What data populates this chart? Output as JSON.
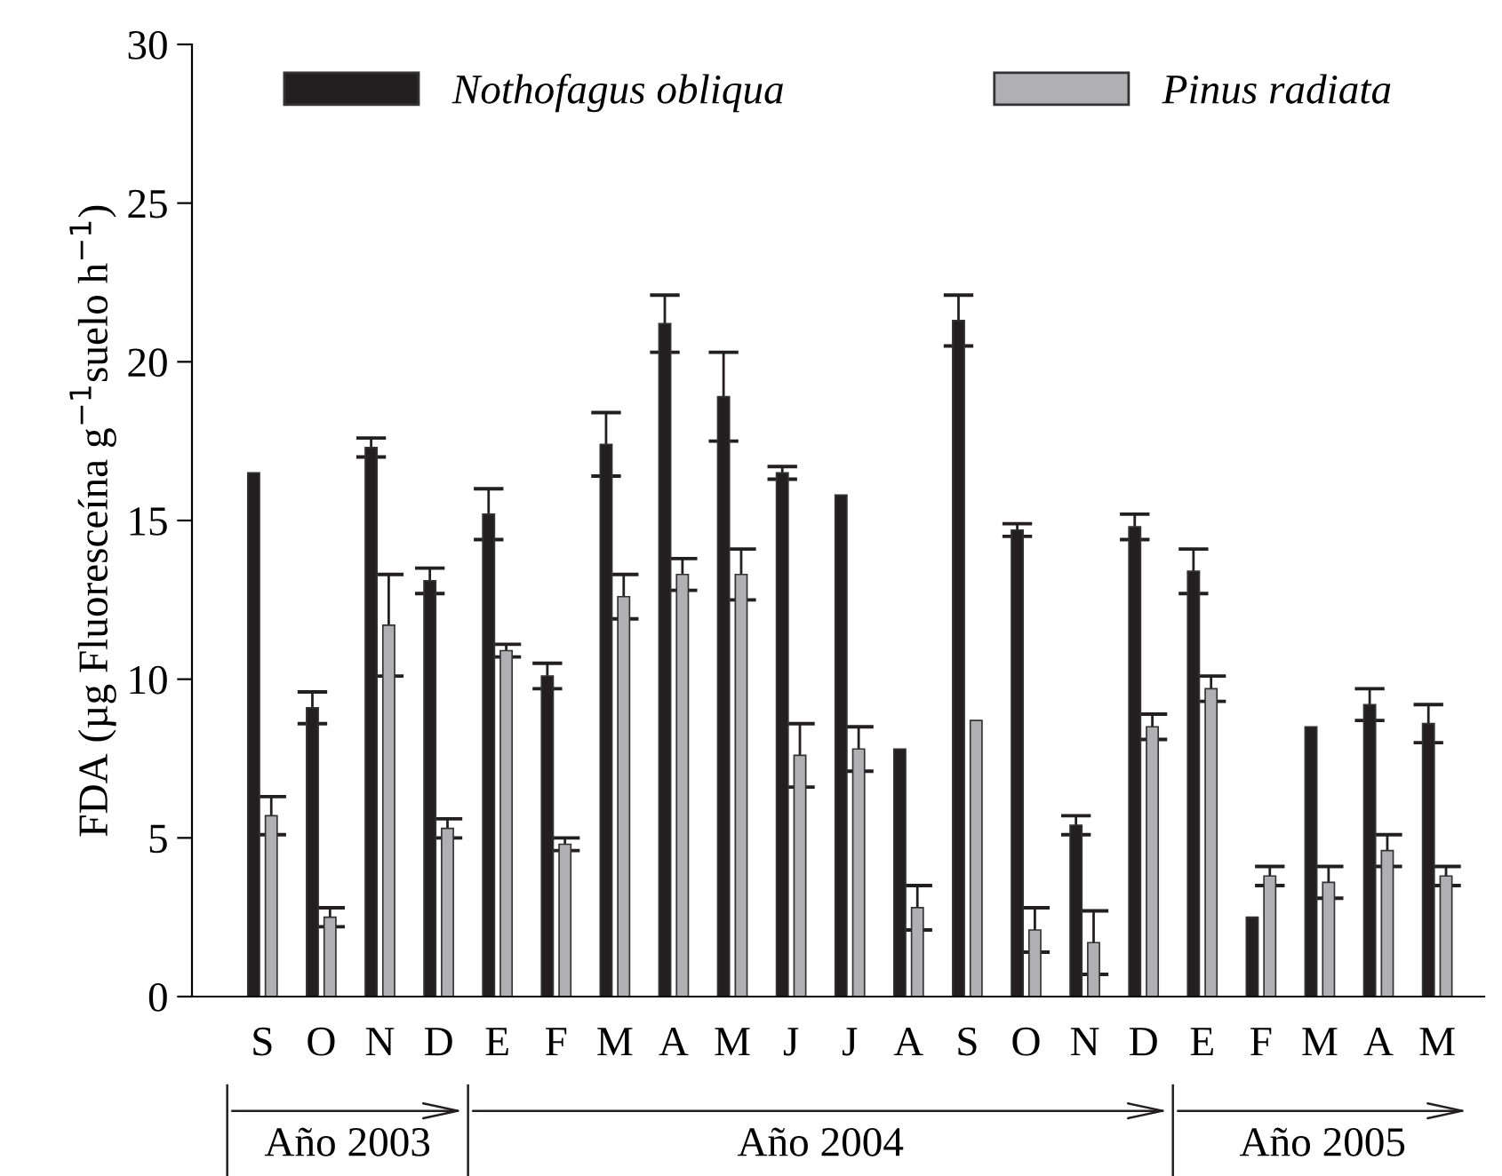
{
  "chart_data": {
    "type": "bar",
    "ylabel": "FDA (µg Fluoresceína g$^{−1}$suelo h$^{−1}$)",
    "categories": [
      "S",
      "O",
      "N",
      "D",
      "E",
      "F",
      "M",
      "A",
      "M",
      "J",
      "J",
      "A",
      "S",
      "O",
      "N",
      "D",
      "E",
      "F",
      "M",
      "A",
      "M"
    ],
    "series": [
      {
        "name": "Nothofagus obliqua",
        "color": "#231f20",
        "values": [
          16.5,
          9.1,
          17.3,
          13.1,
          15.2,
          10.1,
          17.4,
          21.2,
          18.9,
          16.5,
          15.8,
          7.8,
          21.3,
          14.7,
          5.4,
          14.8,
          13.4,
          2.5,
          8.5,
          9.2,
          8.6
        ],
        "errors": [
          null,
          0.5,
          0.3,
          0.4,
          0.8,
          0.4,
          1.0,
          0.9,
          1.4,
          0.2,
          null,
          null,
          0.8,
          0.2,
          0.3,
          0.4,
          0.7,
          null,
          null,
          0.5,
          0.6
        ]
      },
      {
        "name": "Pinus radiata",
        "color": "#b0b0b2",
        "values": [
          5.7,
          2.5,
          11.7,
          5.3,
          10.9,
          4.8,
          12.6,
          13.3,
          13.3,
          7.6,
          7.8,
          2.8,
          8.7,
          2.1,
          1.7,
          8.5,
          9.7,
          3.8,
          3.6,
          4.6,
          3.8
        ],
        "errors": [
          0.6,
          0.3,
          1.6,
          0.3,
          0.2,
          0.2,
          0.7,
          0.5,
          0.8,
          1.0,
          0.7,
          0.7,
          null,
          0.7,
          1.0,
          0.4,
          0.4,
          0.3,
          0.5,
          0.5,
          0.3
        ]
      }
    ],
    "ylim": [
      0,
      30
    ],
    "yticks": [
      0,
      5,
      10,
      15,
      20,
      25,
      30
    ],
    "grid": false,
    "legend": "top",
    "annotations": [
      "Año 2003",
      "Año 2004",
      "Año 2005"
    ]
  }
}
